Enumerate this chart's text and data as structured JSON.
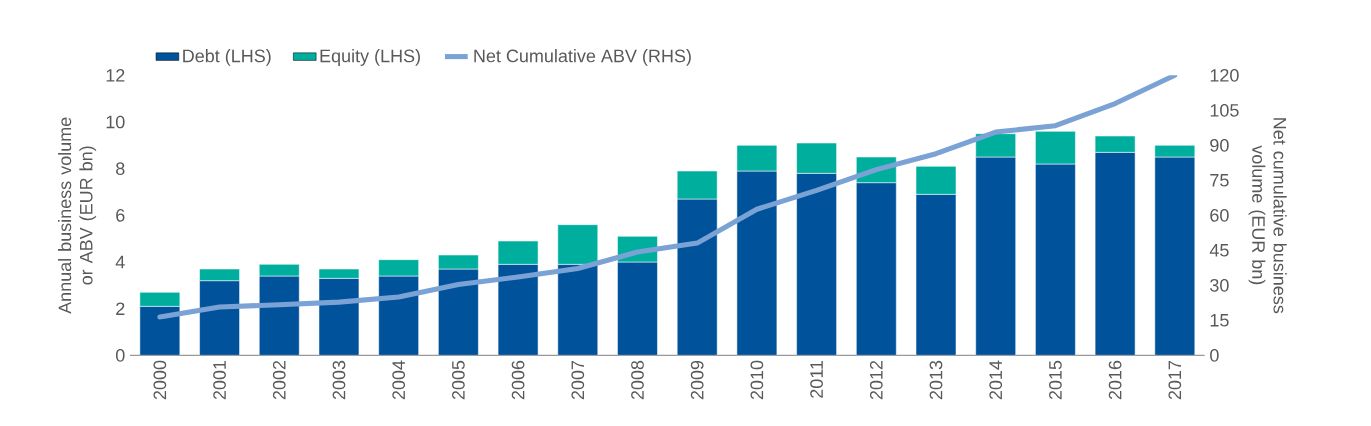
{
  "chart_data": {
    "type": "bar",
    "stacked": true,
    "legend": "top",
    "categories": [
      "2000",
      "2001",
      "2002",
      "2003",
      "2004",
      "2005",
      "2006",
      "2007",
      "2008",
      "2009",
      "2010",
      "2011",
      "2012",
      "2013",
      "2014",
      "2015",
      "2016",
      "2017"
    ],
    "series": [
      {
        "name": "Debt (LHS)",
        "color": "#00529b",
        "values": [
          2.1,
          3.2,
          3.4,
          3.3,
          3.4,
          3.7,
          3.9,
          3.9,
          4.0,
          6.7,
          7.9,
          7.8,
          7.4,
          6.9,
          8.5,
          8.2,
          8.7,
          8.5
        ]
      },
      {
        "name": "Equity (LHS)",
        "color": "#00ae9e",
        "values": [
          0.6,
          0.5,
          0.5,
          0.4,
          0.7,
          0.6,
          1.0,
          1.7,
          1.1,
          1.2,
          1.1,
          1.3,
          1.1,
          1.2,
          1.0,
          1.4,
          0.7,
          0.5
        ]
      },
      {
        "name": "Net Cumulative ABV (RHS)",
        "color": "#7ba2d4",
        "type": "line",
        "axis": "y2",
        "values": [
          16.4,
          20.7,
          21.7,
          22.8,
          25.0,
          30.4,
          33.6,
          37.2,
          44.3,
          48.1,
          62.6,
          70.7,
          79.6,
          86.4,
          95.7,
          98.4,
          107.9,
          120
        ]
      }
    ],
    "ylim": [
      0,
      12
    ],
    "yticks": [
      0,
      2,
      4,
      6,
      8,
      10,
      12
    ],
    "y2lim": [
      0,
      120
    ],
    "y2ticks": [
      0,
      15,
      30,
      45,
      60,
      75,
      90,
      105,
      120
    ],
    "ylabel": "Annual business volume  or ABV (EUR bn)",
    "y2label": "Net cumulative business volume (EUR bn)"
  }
}
